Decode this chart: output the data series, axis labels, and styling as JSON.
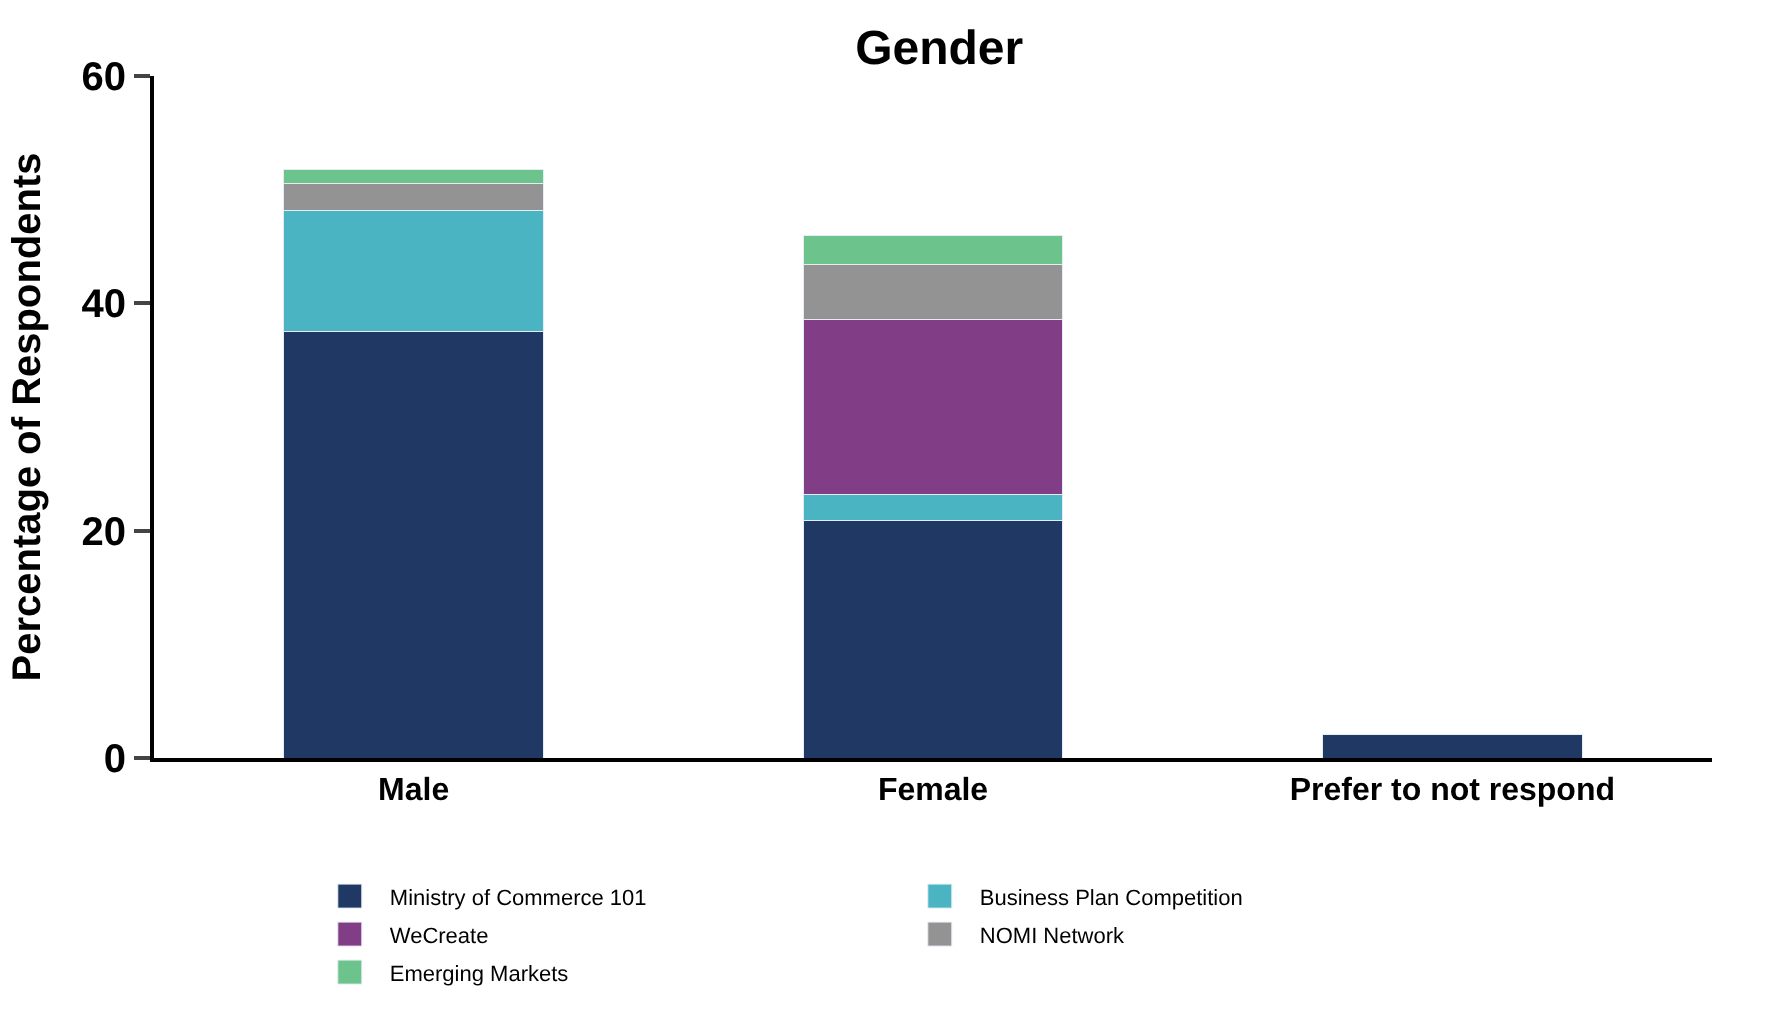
{
  "chart_data": {
    "type": "bar",
    "title": "Gender",
    "ylabel": "Percentage of Respondents",
    "categories": [
      "Male",
      "Female",
      "Prefer to not respond"
    ],
    "stacked": true,
    "ylim": [
      0,
      60
    ],
    "yticks": [
      0,
      20,
      40,
      60
    ],
    "legend": "bottom",
    "series": [
      {
        "name": "Ministry of Commerce 101",
        "color": "#203864",
        "values": [
          37.5,
          20.9,
          2.1
        ]
      },
      {
        "name": "Business Plan Competition",
        "color": "#4bb4c2",
        "values": [
          10.7,
          2.3,
          null
        ]
      },
      {
        "name": "WeCreate",
        "color": "#823d87",
        "values": [
          null,
          15.4,
          null
        ]
      },
      {
        "name": "NOMI Network",
        "color": "#939393",
        "values": [
          2.3,
          4.8,
          null
        ]
      },
      {
        "name": "Emerging Markets",
        "color": "#6cc48c",
        "values": [
          1.3,
          2.6,
          null
        ]
      }
    ]
  }
}
